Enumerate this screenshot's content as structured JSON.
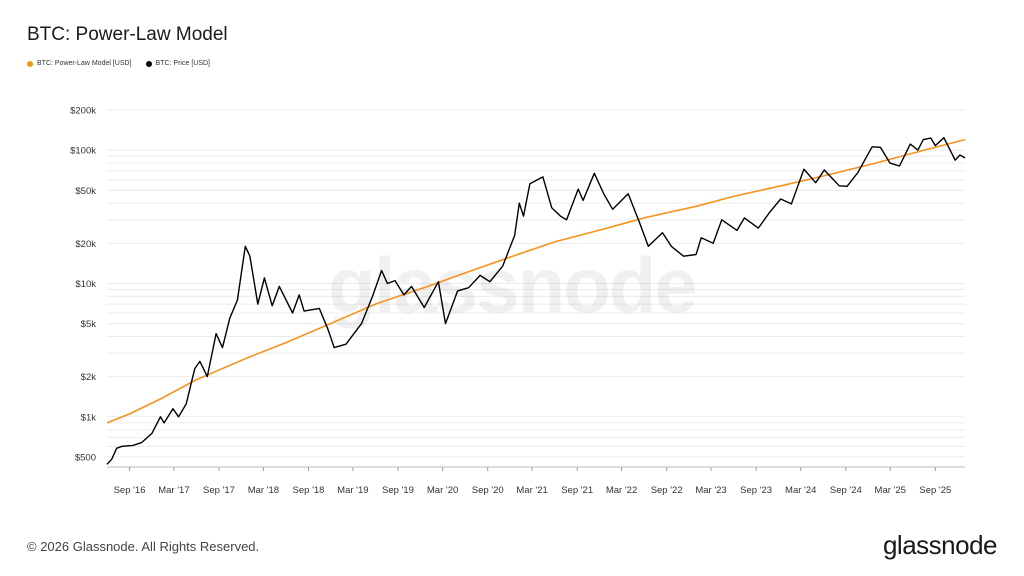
{
  "chart_data": {
    "type": "line",
    "title": "BTC: Power-Law Model",
    "y_scale": "log",
    "ylim": [
      420,
      200000
    ],
    "xlim": [
      "2016-06-01",
      "2025-12-31"
    ],
    "y_ticks": [
      {
        "v": 500,
        "label": "$500"
      },
      {
        "v": 1000,
        "label": "$1k"
      },
      {
        "v": 2000,
        "label": "$2k"
      },
      {
        "v": 5000,
        "label": "$5k"
      },
      {
        "v": 10000,
        "label": "$10k"
      },
      {
        "v": 20000,
        "label": "$20k"
      },
      {
        "v": 50000,
        "label": "$50k"
      },
      {
        "v": 100000,
        "label": "$100k"
      },
      {
        "v": 200000,
        "label": "$200k"
      }
    ],
    "x_ticks": [
      {
        "date": "2016-09-01",
        "label": "Sep '16"
      },
      {
        "date": "2017-03-01",
        "label": "Mar '17"
      },
      {
        "date": "2017-09-01",
        "label": "Sep '17"
      },
      {
        "date": "2018-03-01",
        "label": "Mar '18"
      },
      {
        "date": "2018-09-01",
        "label": "Sep '18"
      },
      {
        "date": "2019-03-01",
        "label": "Mar '19"
      },
      {
        "date": "2019-09-01",
        "label": "Sep '19"
      },
      {
        "date": "2020-03-01",
        "label": "Mar '20"
      },
      {
        "date": "2020-09-01",
        "label": "Sep '20"
      },
      {
        "date": "2021-03-01",
        "label": "Mar '21"
      },
      {
        "date": "2021-09-01",
        "label": "Sep '21"
      },
      {
        "date": "2022-03-01",
        "label": "Mar '22"
      },
      {
        "date": "2022-09-01",
        "label": "Sep '22"
      },
      {
        "date": "2023-03-01",
        "label": "Mar '23"
      },
      {
        "date": "2023-09-01",
        "label": "Sep '23"
      },
      {
        "date": "2024-03-01",
        "label": "Mar '24"
      },
      {
        "date": "2024-09-01",
        "label": "Sep '24"
      },
      {
        "date": "2025-03-01",
        "label": "Mar '25"
      },
      {
        "date": "2025-09-01",
        "label": "Sep '25"
      }
    ],
    "series": [
      {
        "name": "BTC: Power-Law Model [USD]",
        "color": "#f7931a",
        "points": [
          [
            "2016-06-01",
            900
          ],
          [
            "2016-09-01",
            1050
          ],
          [
            "2017-01-01",
            1350
          ],
          [
            "2017-06-01",
            1900
          ],
          [
            "2018-01-01",
            2800
          ],
          [
            "2018-06-01",
            3600
          ],
          [
            "2019-01-01",
            5300
          ],
          [
            "2019-06-01",
            7000
          ],
          [
            "2020-01-01",
            9500
          ],
          [
            "2020-06-01",
            12000
          ],
          [
            "2021-01-01",
            16500
          ],
          [
            "2021-06-01",
            20500
          ],
          [
            "2022-01-01",
            26000
          ],
          [
            "2022-06-01",
            31000
          ],
          [
            "2023-01-01",
            38000
          ],
          [
            "2023-06-01",
            45000
          ],
          [
            "2024-01-01",
            55000
          ],
          [
            "2024-06-01",
            64000
          ],
          [
            "2025-01-01",
            80000
          ],
          [
            "2025-06-01",
            95000
          ],
          [
            "2025-12-31",
            120000
          ]
        ]
      },
      {
        "name": "BTC: Price [USD]",
        "color": "#000000",
        "points": [
          [
            "2016-06-01",
            440
          ],
          [
            "2016-06-20",
            480
          ],
          [
            "2016-07-10",
            580
          ],
          [
            "2016-08-01",
            600
          ],
          [
            "2016-09-15",
            610
          ],
          [
            "2016-10-20",
            640
          ],
          [
            "2016-12-01",
            750
          ],
          [
            "2017-01-05",
            1000
          ],
          [
            "2017-01-20",
            900
          ],
          [
            "2017-02-25",
            1150
          ],
          [
            "2017-03-20",
            1000
          ],
          [
            "2017-04-20",
            1250
          ],
          [
            "2017-05-25",
            2300
          ],
          [
            "2017-06-15",
            2600
          ],
          [
            "2017-07-15",
            2000
          ],
          [
            "2017-08-20",
            4200
          ],
          [
            "2017-09-15",
            3300
          ],
          [
            "2017-10-15",
            5500
          ],
          [
            "2017-11-15",
            7500
          ],
          [
            "2017-12-17",
            19000
          ],
          [
            "2018-01-05",
            16000
          ],
          [
            "2018-02-06",
            7000
          ],
          [
            "2018-03-05",
            11000
          ],
          [
            "2018-04-06",
            6800
          ],
          [
            "2018-05-05",
            9500
          ],
          [
            "2018-06-28",
            6000
          ],
          [
            "2018-07-25",
            8200
          ],
          [
            "2018-08-14",
            6200
          ],
          [
            "2018-10-15",
            6500
          ],
          [
            "2018-11-20",
            4500
          ],
          [
            "2018-12-15",
            3300
          ],
          [
            "2019-02-01",
            3500
          ],
          [
            "2019-04-05",
            5000
          ],
          [
            "2019-05-20",
            8000
          ],
          [
            "2019-06-26",
            12500
          ],
          [
            "2019-07-20",
            10000
          ],
          [
            "2019-08-20",
            10500
          ],
          [
            "2019-09-25",
            8200
          ],
          [
            "2019-10-26",
            9500
          ],
          [
            "2019-12-17",
            6600
          ],
          [
            "2020-02-13",
            10300
          ],
          [
            "2020-03-13",
            5000
          ],
          [
            "2020-05-01",
            8800
          ],
          [
            "2020-06-15",
            9300
          ],
          [
            "2020-08-01",
            11500
          ],
          [
            "2020-09-10",
            10300
          ],
          [
            "2020-11-01",
            13500
          ],
          [
            "2020-12-20",
            23000
          ],
          [
            "2021-01-08",
            40000
          ],
          [
            "2021-01-25",
            32000
          ],
          [
            "2021-02-20",
            56000
          ],
          [
            "2021-04-14",
            63000
          ],
          [
            "2021-05-20",
            37000
          ],
          [
            "2021-06-25",
            32000
          ],
          [
            "2021-07-20",
            30000
          ],
          [
            "2021-09-05",
            51000
          ],
          [
            "2021-09-25",
            42000
          ],
          [
            "2021-11-10",
            67000
          ],
          [
            "2021-12-20",
            46500
          ],
          [
            "2022-01-24",
            36000
          ],
          [
            "2022-03-28",
            47000
          ],
          [
            "2022-05-12",
            29000
          ],
          [
            "2022-06-18",
            19000
          ],
          [
            "2022-08-15",
            24000
          ],
          [
            "2022-09-20",
            19000
          ],
          [
            "2022-11-09",
            16000
          ],
          [
            "2022-12-30",
            16500
          ],
          [
            "2023-01-20",
            22000
          ],
          [
            "2023-03-10",
            20000
          ],
          [
            "2023-04-14",
            30000
          ],
          [
            "2023-06-15",
            25000
          ],
          [
            "2023-07-15",
            31000
          ],
          [
            "2023-09-10",
            26000
          ],
          [
            "2023-10-25",
            34000
          ],
          [
            "2023-12-10",
            43000
          ],
          [
            "2024-01-23",
            39500
          ],
          [
            "2024-03-14",
            72000
          ],
          [
            "2024-05-01",
            57000
          ],
          [
            "2024-06-05",
            71000
          ],
          [
            "2024-08-05",
            54000
          ],
          [
            "2024-09-06",
            53500
          ],
          [
            "2024-10-20",
            68000
          ],
          [
            "2024-12-17",
            106000
          ],
          [
            "2025-01-20",
            105000
          ],
          [
            "2025-02-28",
            80000
          ],
          [
            "2025-04-08",
            76000
          ],
          [
            "2025-05-22",
            111000
          ],
          [
            "2025-06-22",
            100000
          ],
          [
            "2025-07-14",
            120000
          ],
          [
            "2025-08-14",
            123000
          ],
          [
            "2025-09-01",
            108000
          ],
          [
            "2025-10-06",
            124000
          ],
          [
            "2025-11-21",
            84000
          ],
          [
            "2025-12-10",
            92000
          ],
          [
            "2025-12-31",
            87500
          ]
        ]
      }
    ]
  },
  "footer": {
    "copyright": "© 2026 Glassnode. All Rights Reserved."
  },
  "brand": {
    "logo_text": "glassnode",
    "watermark": "glassnode"
  }
}
